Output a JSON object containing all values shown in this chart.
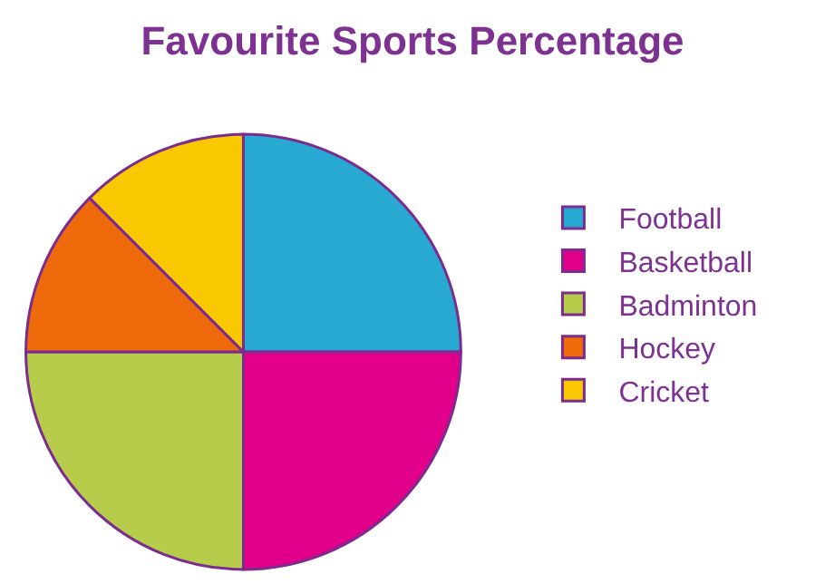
{
  "chart_data": {
    "type": "pie",
    "title": "Favourite Sports Percentage",
    "categories": [
      "Football",
      "Basketball",
      "Badminton",
      "Hockey",
      "Cricket"
    ],
    "values": [
      25,
      25,
      25,
      12.5,
      12.5
    ],
    "colors": [
      "#27a9d1",
      "#e2008a",
      "#b8cc4b",
      "#ee6a0a",
      "#f9c800"
    ],
    "legend": "right"
  }
}
